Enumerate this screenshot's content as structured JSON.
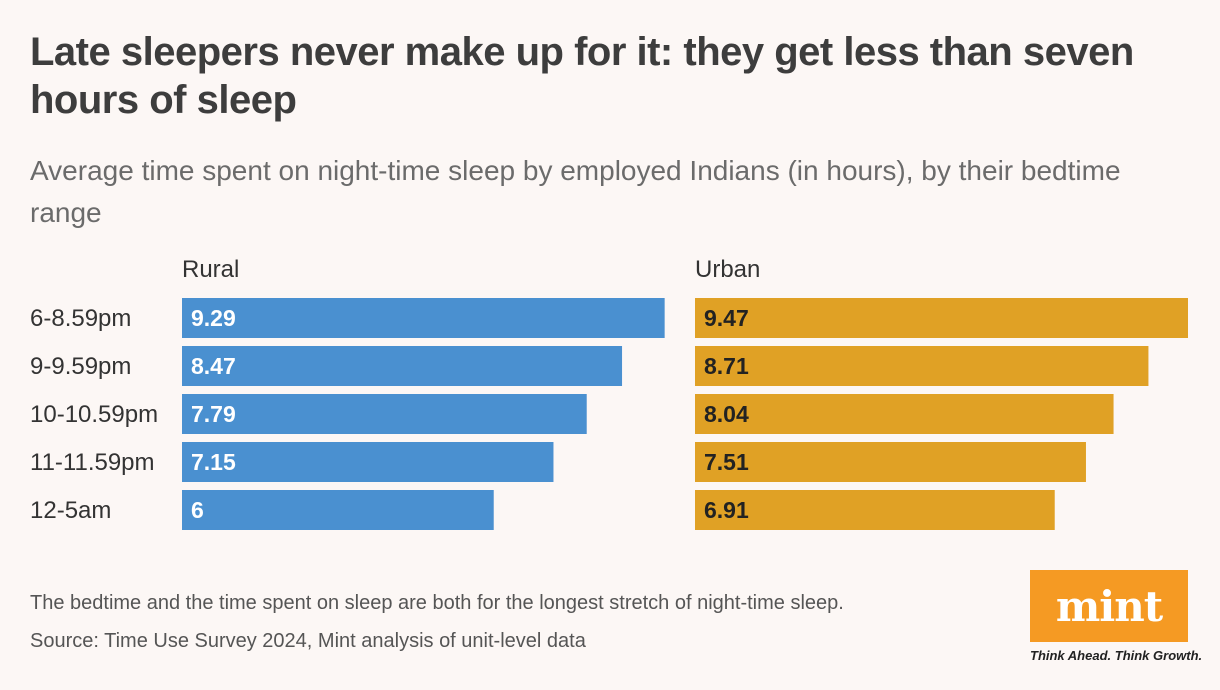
{
  "title": "Late sleepers never make up for it: they get less than seven hours of sleep",
  "subtitle": "Average time spent on night-time sleep by employed Indians (in hours), by their bedtime range",
  "footnote": "The bedtime and the time spent on sleep are both for the longest stretch of night-time sleep.",
  "source": "Source: Time Use Survey 2024, Mint analysis of unit-level data",
  "logo": {
    "text": "mint",
    "tagline": "Think Ahead. Think Growth."
  },
  "colors": {
    "rural": "#4a90d0",
    "urban": "#e0a125",
    "rural_label": "#ffffff",
    "urban_label": "#222222"
  },
  "chart_data": {
    "type": "bar",
    "orientation": "horizontal",
    "categories": [
      "6-8.59pm",
      "9-9.59pm",
      "10-10.59pm",
      "11-11.59pm",
      "12-5am"
    ],
    "series": [
      {
        "name": "Rural",
        "values": [
          9.29,
          8.47,
          7.79,
          7.15,
          6
        ]
      },
      {
        "name": "Urban",
        "values": [
          9.47,
          8.71,
          8.04,
          7.51,
          6.91
        ]
      }
    ],
    "grid": false
  }
}
